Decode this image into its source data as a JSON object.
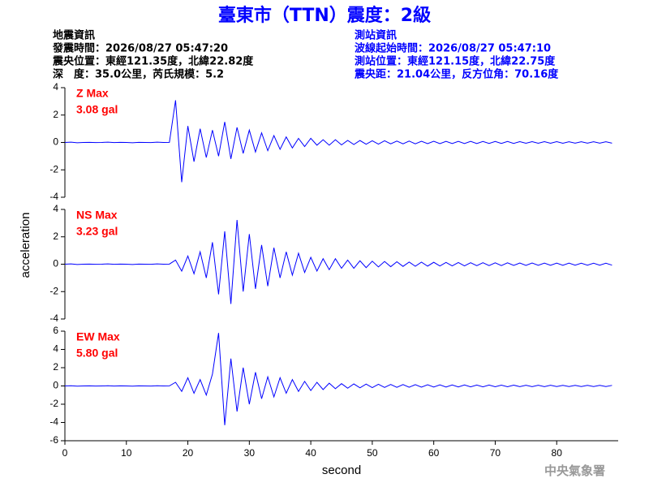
{
  "header": {
    "title": "臺東市（TTN）震度：2級",
    "quake_info": [
      "地震資訊",
      "發震時間：2026/08/27 05:47:20",
      "震央位置：東經121.35度，北緯22.82度",
      "深　度：35.0公里，芮氏規模：5.2"
    ],
    "station_info": [
      "測站資訊",
      "波線起始時間：2026/08/27 05:47:10",
      "測站位置：東經121.15度，北緯22.75度",
      "震央距：21.04公里，反方位角：70.16度"
    ],
    "footer": "中央氣象署"
  },
  "chart_data": [
    {
      "type": "line",
      "annotations": [
        "Z Max",
        "3.08 gal"
      ],
      "color": "#0000ff",
      "xlim": [
        0,
        90
      ],
      "ylim": [
        -4,
        4
      ],
      "yticks": [
        -4,
        -2,
        0,
        2,
        4
      ],
      "x": [
        0,
        1,
        2,
        3,
        4,
        5,
        6,
        7,
        8,
        9,
        10,
        11,
        12,
        13,
        14,
        15,
        16,
        17,
        18,
        19,
        20,
        21,
        22,
        23,
        24,
        25,
        26,
        27,
        28,
        29,
        30,
        31,
        32,
        33,
        34,
        35,
        36,
        37,
        38,
        39,
        40,
        41,
        42,
        43,
        44,
        45,
        46,
        47,
        48,
        49,
        50,
        51,
        52,
        53,
        54,
        55,
        56,
        57,
        58,
        59,
        60,
        61,
        62,
        63,
        64,
        65,
        66,
        67,
        68,
        69,
        70,
        71,
        72,
        73,
        74,
        75,
        76,
        77,
        78,
        79,
        80,
        81,
        82,
        83,
        84,
        85,
        86,
        87,
        88,
        89
      ],
      "values": [
        0,
        0.02,
        -0.02,
        0,
        0.01,
        -0.01,
        0,
        0.02,
        -0.01,
        0.01,
        0,
        -0.02,
        0.01,
        0,
        -0.01,
        0.02,
        0,
        0.01,
        3.08,
        -2.9,
        1.2,
        -1.4,
        1.0,
        -1.1,
        0.9,
        -1.0,
        1.5,
        -1.2,
        1.1,
        -0.8,
        0.9,
        -0.7,
        0.7,
        -0.6,
        0.5,
        -0.5,
        0.4,
        -0.4,
        0.3,
        -0.3,
        0.3,
        -0.2,
        0.2,
        -0.2,
        0.2,
        -0.18,
        0.15,
        -0.15,
        0.14,
        -0.13,
        0.12,
        -0.12,
        0.12,
        -0.1,
        0.1,
        -0.1,
        0.1,
        -0.1,
        0.09,
        -0.09,
        0.09,
        -0.09,
        0.08,
        -0.08,
        0.08,
        -0.08,
        0.08,
        -0.08,
        0.07,
        -0.07,
        0.07,
        -0.07,
        0.07,
        -0.07,
        0.06,
        -0.06,
        0.06,
        -0.06,
        0.06,
        -0.06,
        0.06,
        -0.06,
        0.05,
        -0.05,
        0.05,
        -0.05,
        0.05,
        -0.05,
        0.05,
        -0.05
      ]
    },
    {
      "type": "line",
      "annotations": [
        "NS Max",
        "3.23 gal"
      ],
      "ylabel": "acceleration",
      "color": "#0000ff",
      "xlim": [
        0,
        90
      ],
      "ylim": [
        -4,
        4
      ],
      "yticks": [
        -4,
        -2,
        0,
        2,
        4
      ],
      "x": [
        0,
        1,
        2,
        3,
        4,
        5,
        6,
        7,
        8,
        9,
        10,
        11,
        12,
        13,
        14,
        15,
        16,
        17,
        18,
        19,
        20,
        21,
        22,
        23,
        24,
        25,
        26,
        27,
        28,
        29,
        30,
        31,
        32,
        33,
        34,
        35,
        36,
        37,
        38,
        39,
        40,
        41,
        42,
        43,
        44,
        45,
        46,
        47,
        48,
        49,
        50,
        51,
        52,
        53,
        54,
        55,
        56,
        57,
        58,
        59,
        60,
        61,
        62,
        63,
        64,
        65,
        66,
        67,
        68,
        69,
        70,
        71,
        72,
        73,
        74,
        75,
        76,
        77,
        78,
        79,
        80,
        81,
        82,
        83,
        84,
        85,
        86,
        87,
        88,
        89
      ],
      "values": [
        0,
        0.02,
        -0.02,
        0,
        0.01,
        -0.01,
        0,
        0.02,
        -0.01,
        0.01,
        0,
        -0.02,
        0.01,
        0,
        -0.01,
        0.02,
        0,
        0.01,
        0.3,
        -0.5,
        0.6,
        -0.7,
        0.9,
        -1.0,
        1.6,
        -2.2,
        2.4,
        -2.9,
        3.23,
        -2.0,
        2.2,
        -1.8,
        1.4,
        -1.6,
        1.2,
        -1.0,
        0.9,
        -0.8,
        0.8,
        -0.6,
        0.5,
        -0.5,
        0.4,
        -0.4,
        0.4,
        -0.3,
        0.3,
        -0.3,
        0.25,
        -0.25,
        0.22,
        -0.2,
        0.2,
        -0.18,
        0.18,
        -0.16,
        0.16,
        -0.15,
        0.15,
        -0.14,
        0.14,
        -0.13,
        0.13,
        -0.12,
        0.12,
        -0.12,
        0.11,
        -0.11,
        0.11,
        -0.1,
        0.1,
        -0.1,
        0.1,
        -0.09,
        0.09,
        -0.09,
        0.09,
        -0.08,
        0.08,
        -0.08,
        0.08,
        -0.08,
        0.08,
        -0.07,
        0.07,
        -0.07,
        0.07,
        -0.07,
        0.07,
        -0.07
      ]
    },
    {
      "type": "line",
      "annotations": [
        "EW Max",
        "5.80 gal"
      ],
      "xlabel": "second",
      "color": "#0000ff",
      "xlim": [
        0,
        90
      ],
      "ylim": [
        -6,
        6
      ],
      "yticks": [
        -6,
        -4,
        -2,
        0,
        2,
        4,
        6
      ],
      "xticks": [
        0,
        10,
        20,
        30,
        40,
        50,
        60,
        70,
        80
      ],
      "x": [
        0,
        1,
        2,
        3,
        4,
        5,
        6,
        7,
        8,
        9,
        10,
        11,
        12,
        13,
        14,
        15,
        16,
        17,
        18,
        19,
        20,
        21,
        22,
        23,
        24,
        25,
        26,
        27,
        28,
        29,
        30,
        31,
        32,
        33,
        34,
        35,
        36,
        37,
        38,
        39,
        40,
        41,
        42,
        43,
        44,
        45,
        46,
        47,
        48,
        49,
        50,
        51,
        52,
        53,
        54,
        55,
        56,
        57,
        58,
        59,
        60,
        61,
        62,
        63,
        64,
        65,
        66,
        67,
        68,
        69,
        70,
        71,
        72,
        73,
        74,
        75,
        76,
        77,
        78,
        79,
        80,
        81,
        82,
        83,
        84,
        85,
        86,
        87,
        88,
        89
      ],
      "values": [
        0,
        0.02,
        -0.02,
        0,
        0.01,
        -0.01,
        0,
        0.02,
        -0.01,
        0.01,
        0,
        -0.02,
        0.01,
        0,
        -0.01,
        0.02,
        0,
        0.01,
        0.4,
        -0.6,
        0.9,
        -0.8,
        0.7,
        -1.0,
        1.3,
        5.8,
        -4.3,
        3.0,
        -2.8,
        2.0,
        -2.0,
        1.5,
        -1.4,
        1.0,
        -1.2,
        0.9,
        -0.8,
        0.7,
        -0.6,
        0.5,
        -0.5,
        0.4,
        -0.4,
        0.3,
        -0.3,
        0.25,
        -0.25,
        0.22,
        -0.2,
        0.2,
        -0.18,
        0.18,
        -0.16,
        0.16,
        -0.15,
        0.15,
        -0.14,
        0.14,
        -0.13,
        0.13,
        -0.12,
        0.12,
        -0.12,
        0.11,
        -0.11,
        0.11,
        -0.1,
        0.1,
        -0.1,
        0.1,
        -0.09,
        0.09,
        -0.09,
        0.09,
        -0.08,
        0.08,
        -0.08,
        0.08,
        -0.08,
        0.08,
        -0.07,
        0.07,
        -0.07,
        0.07,
        -0.07,
        0.07,
        -0.07,
        0.06,
        -0.06,
        0.06
      ]
    }
  ]
}
